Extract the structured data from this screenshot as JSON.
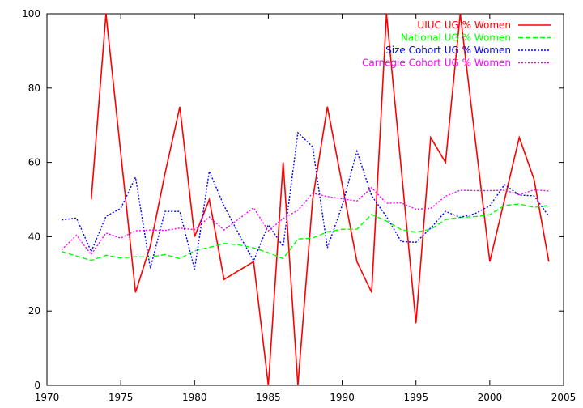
{
  "chart_data": {
    "type": "line",
    "xlim": [
      1970,
      2005
    ],
    "ylim": [
      0,
      100
    ],
    "grid": false,
    "legend_position": "top-right",
    "x_ticks": [
      1970,
      1975,
      1980,
      1985,
      1990,
      1995,
      2000,
      2005
    ],
    "y_ticks": [
      0,
      20,
      40,
      60,
      80,
      100
    ],
    "series": [
      {
        "name": "UIUC UG % Women",
        "color": "#ff0000",
        "style": "solid",
        "points": [
          [
            1973,
            50
          ],
          [
            1974,
            100
          ],
          [
            1976,
            25
          ],
          [
            1977,
            37.5
          ],
          [
            1978,
            57
          ],
          [
            1979,
            75
          ],
          [
            1980,
            40
          ],
          [
            1981,
            50
          ],
          [
            1982,
            28.5
          ],
          [
            1984,
            33.3
          ],
          [
            1985,
            0
          ],
          [
            1986,
            60
          ],
          [
            1987,
            0
          ],
          [
            1988,
            50
          ],
          [
            1989,
            75
          ],
          [
            1991,
            33.3
          ],
          [
            1992,
            25
          ],
          [
            1993,
            100
          ],
          [
            1995,
            16.7
          ],
          [
            1996,
            66.7
          ],
          [
            1997,
            60
          ],
          [
            1998,
            100
          ],
          [
            2000,
            33.3
          ],
          [
            2002,
            66.7
          ],
          [
            2003,
            55.5
          ],
          [
            2004,
            33.3
          ]
        ]
      },
      {
        "name": "National UG % Women",
        "color": "#00ff00",
        "style": "dashed",
        "points": [
          [
            1971,
            36
          ],
          [
            1972,
            34.8
          ],
          [
            1973,
            33.6
          ],
          [
            1974,
            35
          ],
          [
            1975,
            34.3
          ],
          [
            1976,
            34.6
          ],
          [
            1977,
            34.5
          ],
          [
            1978,
            35.2
          ],
          [
            1979,
            34.1
          ],
          [
            1980,
            36.2
          ],
          [
            1981,
            37.1
          ],
          [
            1982,
            38.2
          ],
          [
            1983,
            37.8
          ],
          [
            1984,
            37
          ],
          [
            1985,
            35.7
          ],
          [
            1986,
            34.1
          ],
          [
            1987,
            39.4
          ],
          [
            1988,
            39.6
          ],
          [
            1989,
            41.3
          ],
          [
            1990,
            42
          ],
          [
            1991,
            42
          ],
          [
            1992,
            46
          ],
          [
            1993,
            44.2
          ],
          [
            1994,
            41.9
          ],
          [
            1995,
            41.2
          ],
          [
            1996,
            42
          ],
          [
            1997,
            44.6
          ],
          [
            1998,
            45.2
          ],
          [
            1999,
            45.4
          ],
          [
            2000,
            45.9
          ],
          [
            2001,
            48.4
          ],
          [
            2002,
            48.8
          ],
          [
            2003,
            47.9
          ],
          [
            2004,
            48.4
          ]
        ]
      },
      {
        "name": "Size Cohort UG % Women",
        "color": "#0000ff",
        "style": "dotted",
        "points": [
          [
            1971,
            44.5
          ],
          [
            1972,
            45
          ],
          [
            1973,
            36
          ],
          [
            1974,
            45.5
          ],
          [
            1975,
            47.6
          ],
          [
            1976,
            56
          ],
          [
            1977,
            31.5
          ],
          [
            1978,
            46.8
          ],
          [
            1979,
            46.8
          ],
          [
            1980,
            31.2
          ],
          [
            1981,
            57.6
          ],
          [
            1982,
            48.3
          ],
          [
            1983,
            40.7
          ],
          [
            1984,
            33.5
          ],
          [
            1985,
            43.2
          ],
          [
            1986,
            37.4
          ],
          [
            1987,
            68
          ],
          [
            1988,
            64.2
          ],
          [
            1989,
            37
          ],
          [
            1990,
            48.4
          ],
          [
            1991,
            63
          ],
          [
            1992,
            51
          ],
          [
            1993,
            45.4
          ],
          [
            1994,
            38.7
          ],
          [
            1995,
            38.5
          ],
          [
            1996,
            42.3
          ],
          [
            1997,
            46.8
          ],
          [
            1998,
            45.2
          ],
          [
            1999,
            46.2
          ],
          [
            2000,
            48.3
          ],
          [
            2001,
            54
          ],
          [
            2002,
            51.2
          ],
          [
            2003,
            51
          ],
          [
            2004,
            45.5
          ]
        ]
      },
      {
        "name": "Carnegie Cohort UG % Women",
        "color": "#ff00ff",
        "style": "dotted",
        "points": [
          [
            1971,
            36.5
          ],
          [
            1972,
            40.4
          ],
          [
            1973,
            35.2
          ],
          [
            1974,
            41
          ],
          [
            1975,
            39.6
          ],
          [
            1976,
            41.6
          ],
          [
            1977,
            41.8
          ],
          [
            1978,
            41.7
          ],
          [
            1979,
            42.3
          ],
          [
            1980,
            41.9
          ],
          [
            1981,
            45.3
          ],
          [
            1982,
            41.8
          ],
          [
            1983,
            44.8
          ],
          [
            1984,
            47.8
          ],
          [
            1985,
            41.6
          ],
          [
            1986,
            44.9
          ],
          [
            1987,
            47.1
          ],
          [
            1988,
            51.7
          ],
          [
            1989,
            50.8
          ],
          [
            1990,
            50.2
          ],
          [
            1991,
            49.6
          ],
          [
            1992,
            53.2
          ],
          [
            1993,
            49
          ],
          [
            1994,
            49.1
          ],
          [
            1995,
            47.4
          ],
          [
            1996,
            47.6
          ],
          [
            1997,
            50.9
          ],
          [
            1998,
            52.5
          ],
          [
            1999,
            52.4
          ],
          [
            2000,
            52.4
          ],
          [
            2001,
            52.5
          ],
          [
            2002,
            51.3
          ],
          [
            2003,
            52.6
          ],
          [
            2004,
            52.3
          ]
        ]
      }
    ]
  }
}
